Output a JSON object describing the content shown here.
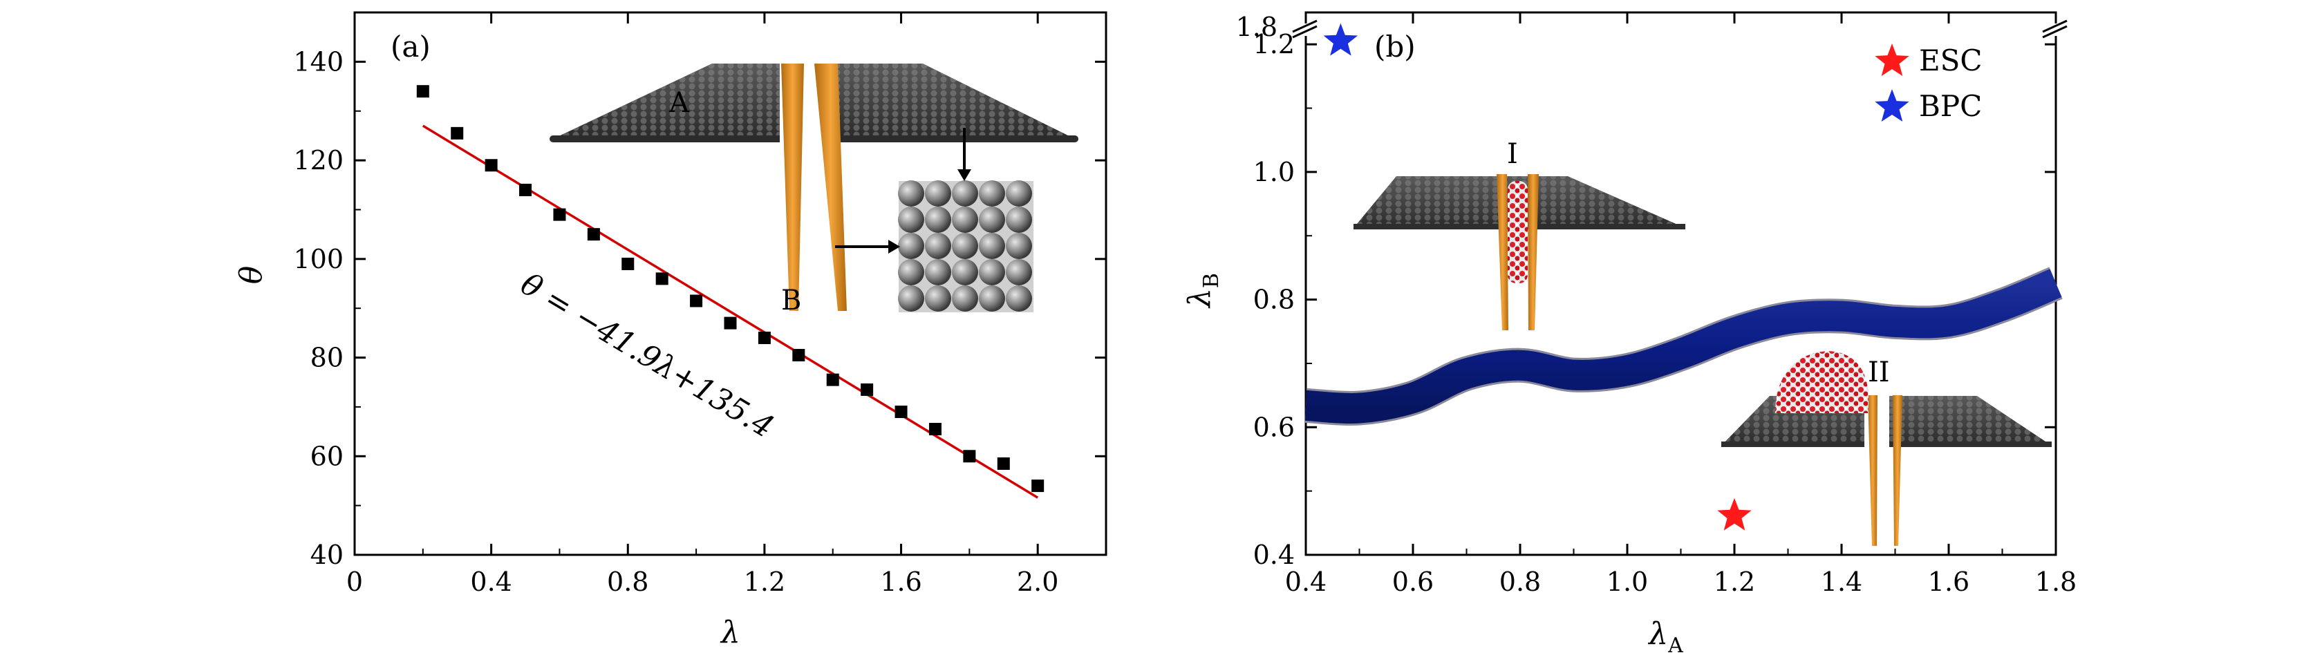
{
  "chart_data": [
    {
      "panel": "(a)",
      "type": "scatter",
      "xlabel": "λ",
      "ylabel": "θ",
      "xlim": [
        0,
        2.2
      ],
      "ylim": [
        40,
        150
      ],
      "xticks": [
        0,
        0.4,
        0.8,
        1.2,
        1.6,
        2.0
      ],
      "xtick_labels": [
        "0",
        "0.4",
        "0.8",
        "1.2",
        "1.6",
        "2.0"
      ],
      "yticks": [
        40,
        60,
        80,
        100,
        120,
        140
      ],
      "ytick_labels": [
        "40",
        "60",
        "80",
        "100",
        "120",
        "140"
      ],
      "series": [
        {
          "name": "data",
          "x": [
            0.2,
            0.3,
            0.4,
            0.5,
            0.6,
            0.7,
            0.8,
            0.9,
            1.0,
            1.1,
            1.2,
            1.3,
            1.4,
            1.5,
            1.6,
            1.7,
            1.8,
            1.9,
            2.0
          ],
          "y": [
            134,
            125.5,
            119,
            114,
            109,
            105,
            99,
            96,
            91.5,
            87,
            84,
            80.5,
            75.5,
            73.5,
            69,
            65.5,
            60,
            58.5,
            54
          ]
        }
      ],
      "fit": {
        "slope": -41.9,
        "intercept": 135.4,
        "x_range": [
          0.2,
          2.0
        ],
        "label": "θ = −41.9λ+135.4",
        "color": "#d40000"
      },
      "inset_labels": {
        "a": "A",
        "b": "B"
      }
    },
    {
      "panel": "(b)",
      "type": "scatter",
      "xlabel": "λ",
      "xlabel_sub": "A",
      "ylabel": "λ",
      "ylabel_sub": "B",
      "xlim": [
        0.4,
        1.8
      ],
      "ylim": [
        0.4,
        1.25
      ],
      "xticks": [
        0.4,
        0.6,
        0.8,
        1.0,
        1.2,
        1.4,
        1.6,
        1.8
      ],
      "xtick_labels": [
        "0.4",
        "0.6",
        "0.8",
        "1.0",
        "1.2",
        "1.4",
        "1.6",
        "1.8"
      ],
      "yticks": [
        0.4,
        0.6,
        0.8,
        1.0,
        1.2
      ],
      "ytick_labels": [
        "0.4",
        "0.6",
        "0.8",
        "1.0",
        "1.2"
      ],
      "break_label": "1.8",
      "boundary": {
        "x": [
          0.4,
          0.5,
          0.6,
          0.7,
          0.8,
          0.9,
          1.0,
          1.1,
          1.2,
          1.3,
          1.4,
          1.5,
          1.6,
          1.7,
          1.8
        ],
        "y": [
          0.634,
          0.63,
          0.646,
          0.684,
          0.697,
          0.682,
          0.689,
          0.715,
          0.748,
          0.77,
          0.774,
          0.765,
          0.766,
          0.791,
          0.826
        ],
        "color": "#0a1f7a"
      },
      "points": [
        {
          "name": "ESC",
          "x": 1.2,
          "y": 0.461,
          "color": "#ff1a1a"
        },
        {
          "name": "BPC",
          "x": 0.465,
          "y": 1.205,
          "color": "#1a2fe0"
        }
      ],
      "legend": [
        {
          "label": "ESC",
          "color": "#ff1a1a"
        },
        {
          "label": "BPC",
          "color": "#1a2fe0"
        }
      ],
      "inset_labels": {
        "one": "I",
        "two": "II"
      }
    }
  ]
}
